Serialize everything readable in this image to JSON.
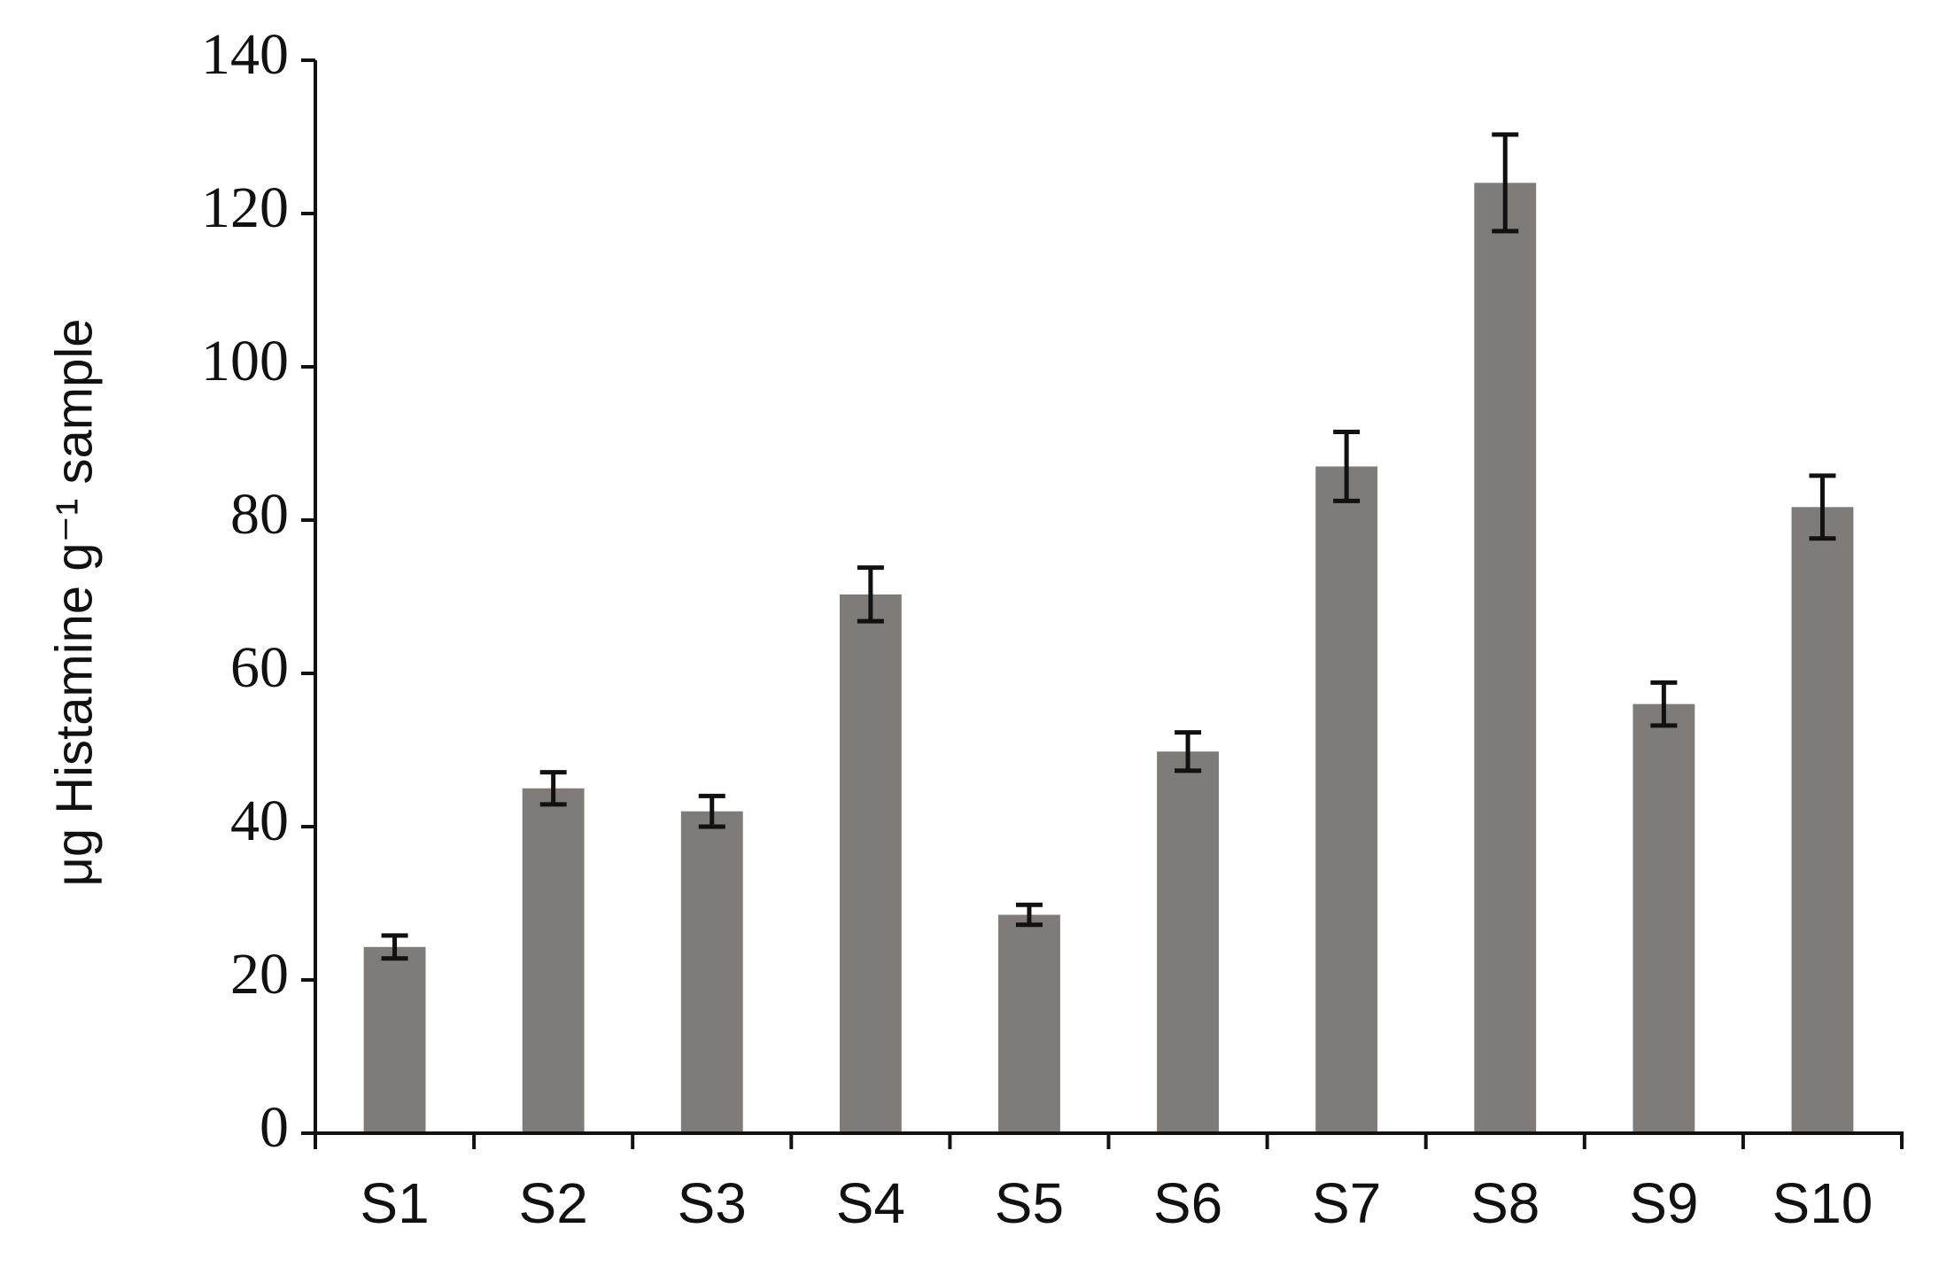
{
  "chart_data": {
    "type": "bar",
    "y_label": "μg Histamine g⁻¹ sample",
    "categories": [
      "S1",
      "S2",
      "S3",
      "S4",
      "S5",
      "S6",
      "S7",
      "S8",
      "S9",
      "S10"
    ],
    "values": [
      24.3,
      45,
      42,
      70.3,
      28.5,
      49.8,
      87,
      124,
      56,
      81.7
    ],
    "errors": [
      1.5,
      2.1,
      2,
      3.5,
      1.3,
      2.5,
      4.5,
      6.3,
      2.8,
      4.1
    ],
    "color": "#7f7b78",
    "ylim": [
      0,
      140
    ],
    "yticks": [
      0,
      20,
      40,
      60,
      80,
      100,
      120,
      140
    ],
    "grid": false
  }
}
